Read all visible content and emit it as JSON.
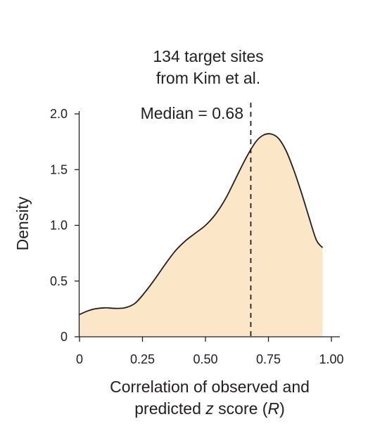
{
  "chart_data": {
    "type": "area",
    "title_lines": [
      "134 target sites",
      "from Kim et al."
    ],
    "xlabel_lines": [
      [
        {
          "t": "Correlation of observed and",
          "i": false
        }
      ],
      [
        {
          "t": "predicted ",
          "i": false
        },
        {
          "t": "z",
          "i": true
        },
        {
          "t": " score (",
          "i": false
        },
        {
          "t": "R",
          "i": true
        },
        {
          "t": ")",
          "i": false
        }
      ]
    ],
    "ylabel": "Density",
    "xlim": [
      0,
      1.0
    ],
    "ylim": [
      0,
      2.0
    ],
    "xticks": [
      {
        "v": 0,
        "label": "0"
      },
      {
        "v": 0.25,
        "label": "0.25"
      },
      {
        "v": 0.5,
        "label": "0.50"
      },
      {
        "v": 0.75,
        "label": "0.75"
      },
      {
        "v": 1.0,
        "label": "1.00"
      }
    ],
    "yticks": [
      {
        "v": 0,
        "label": "0"
      },
      {
        "v": 0.5,
        "label": "0.5"
      },
      {
        "v": 1.0,
        "label": "1.0"
      },
      {
        "v": 1.5,
        "label": "1.5"
      },
      {
        "v": 2.0,
        "label": "2.0"
      }
    ],
    "series": [
      {
        "color": "#231f20",
        "fill": "#fbe6c8",
        "x": [
          0.0,
          0.03,
          0.06,
          0.1,
          0.14,
          0.18,
          0.22,
          0.26,
          0.3,
          0.34,
          0.38,
          0.42,
          0.46,
          0.5,
          0.54,
          0.58,
          0.62,
          0.66,
          0.7,
          0.73,
          0.76,
          0.79,
          0.82,
          0.85,
          0.88,
          0.91,
          0.94,
          0.965
        ],
        "y": [
          0.2,
          0.23,
          0.25,
          0.26,
          0.255,
          0.26,
          0.3,
          0.4,
          0.52,
          0.65,
          0.77,
          0.86,
          0.93,
          1.0,
          1.1,
          1.24,
          1.42,
          1.6,
          1.75,
          1.81,
          1.82,
          1.78,
          1.67,
          1.5,
          1.3,
          1.08,
          0.87,
          0.8
        ]
      }
    ],
    "median": {
      "value": 0.68,
      "label": "Median = 0.68"
    },
    "grid": false,
    "legend": "none"
  }
}
